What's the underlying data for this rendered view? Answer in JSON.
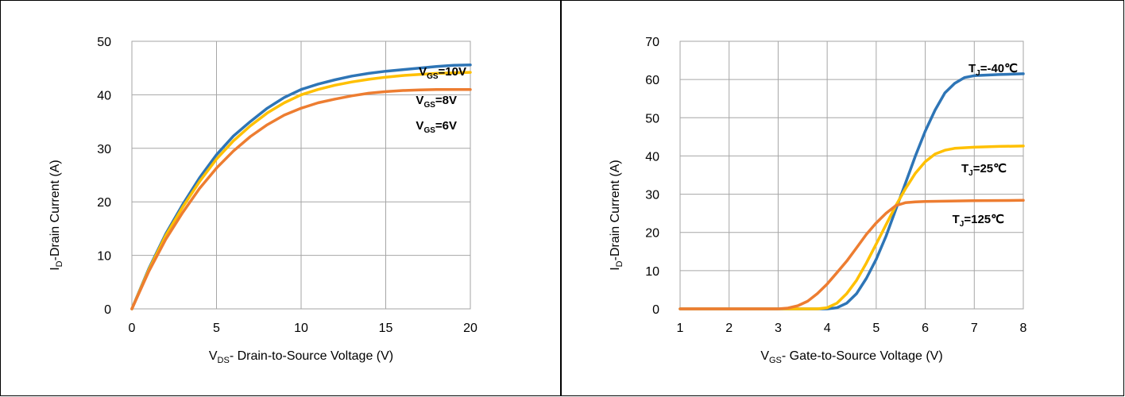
{
  "chart_data": [
    {
      "type": "line",
      "xlabel": {
        "main": "V",
        "sub": "DS",
        "rest": "- Drain-to-Source Voltage (V)"
      },
      "ylabel": {
        "main": "I",
        "sub": "D",
        "rest": "-Drain Current (A)"
      },
      "xlim": [
        0,
        20
      ],
      "ylim": [
        0,
        50
      ],
      "xticks": [
        0,
        5,
        10,
        15,
        20
      ],
      "yticks": [
        0,
        10,
        20,
        30,
        40,
        50
      ],
      "grid": true,
      "series": [
        {
          "label": {
            "main": "V",
            "sub": "GS",
            "rest": "=10V"
          },
          "color": "#2e75b6",
          "x": [
            0,
            1,
            2,
            3,
            4,
            5,
            6,
            7,
            8,
            9,
            10,
            11,
            12,
            13,
            14,
            15,
            16,
            17,
            18,
            19,
            20
          ],
          "y": [
            0,
            7.5,
            14,
            19.5,
            24.5,
            28.8,
            32.3,
            35.0,
            37.5,
            39.5,
            41.0,
            42.0,
            42.8,
            43.5,
            44.0,
            44.4,
            44.7,
            45.0,
            45.3,
            45.5,
            45.6
          ]
        },
        {
          "label": {
            "main": "V",
            "sub": "GS",
            "rest": "=8V"
          },
          "color": "#ffc000",
          "x": [
            0,
            1,
            2,
            3,
            4,
            5,
            6,
            7,
            8,
            9,
            10,
            11,
            12,
            13,
            14,
            15,
            16,
            17,
            18,
            19,
            20
          ],
          "y": [
            0,
            7.3,
            13.7,
            19.0,
            23.8,
            28.0,
            31.4,
            34.2,
            36.6,
            38.5,
            40.0,
            41.0,
            41.8,
            42.4,
            42.9,
            43.3,
            43.6,
            43.8,
            44.0,
            44.1,
            44.2
          ]
        },
        {
          "label": {
            "main": "V",
            "sub": "GS",
            "rest": "=6V"
          },
          "color": "#ed7d31",
          "x": [
            0,
            1,
            2,
            3,
            4,
            5,
            6,
            7,
            8,
            9,
            10,
            11,
            12,
            13,
            14,
            15,
            16,
            17,
            18,
            19,
            20
          ],
          "y": [
            0,
            7.0,
            13.0,
            18.0,
            22.5,
            26.3,
            29.5,
            32.2,
            34.4,
            36.2,
            37.5,
            38.5,
            39.2,
            39.8,
            40.3,
            40.6,
            40.8,
            40.9,
            41.0,
            41.0,
            41.0
          ]
        }
      ]
    },
    {
      "type": "line",
      "xlabel": {
        "main": "V",
        "sub": "GS",
        "rest": "- Gate-to-Source Voltage (V)"
      },
      "ylabel": {
        "main": "I",
        "sub": "D",
        "rest": "-Drain Current (A)"
      },
      "xlim": [
        1,
        8
      ],
      "ylim": [
        0,
        70
      ],
      "xticks": [
        1,
        2,
        3,
        4,
        5,
        6,
        7,
        8
      ],
      "yticks": [
        0,
        10,
        20,
        30,
        40,
        50,
        60,
        70
      ],
      "grid": true,
      "series": [
        {
          "label": {
            "main": "T",
            "sub": "J",
            "rest": "=-40℃"
          },
          "color": "#2e75b6",
          "x": [
            1,
            2,
            3,
            4.0,
            4.2,
            4.4,
            4.6,
            4.8,
            5.0,
            5.2,
            5.4,
            5.6,
            5.8,
            6.0,
            6.2,
            6.4,
            6.6,
            6.8,
            7.0,
            7.5,
            8.0
          ],
          "y": [
            0,
            0,
            0,
            0.0,
            0.3,
            1.5,
            4.0,
            8.0,
            13.0,
            19.0,
            26.0,
            33.0,
            40.0,
            46.5,
            52.0,
            56.5,
            59.0,
            60.5,
            61.0,
            61.3,
            61.5
          ]
        },
        {
          "label": {
            "main": "T",
            "sub": "J",
            "rest": "=25℃"
          },
          "color": "#ffc000",
          "x": [
            1,
            2,
            3,
            3.8,
            4.0,
            4.2,
            4.4,
            4.6,
            4.8,
            5.0,
            5.2,
            5.4,
            5.6,
            5.8,
            6.0,
            6.2,
            6.4,
            6.6,
            7.0,
            7.5,
            8.0
          ],
          "y": [
            0,
            0,
            0,
            0.0,
            0.3,
            1.5,
            4.0,
            7.5,
            12.0,
            17.0,
            22.0,
            27.0,
            31.5,
            35.5,
            38.5,
            40.5,
            41.5,
            42.0,
            42.3,
            42.5,
            42.6
          ]
        },
        {
          "label": {
            "main": "T",
            "sub": "J",
            "rest": "=125℃"
          },
          "color": "#ed7d31",
          "x": [
            1,
            2,
            3,
            3.2,
            3.4,
            3.6,
            3.8,
            4.0,
            4.2,
            4.4,
            4.6,
            4.8,
            5.0,
            5.2,
            5.4,
            5.6,
            5.8,
            6.0,
            6.5,
            7.0,
            8.0
          ],
          "y": [
            0,
            0,
            0,
            0.2,
            0.8,
            2.0,
            4.0,
            6.5,
            9.5,
            12.5,
            16.0,
            19.5,
            22.5,
            25.0,
            27.0,
            27.8,
            28.0,
            28.1,
            28.2,
            28.3,
            28.4
          ]
        }
      ]
    }
  ]
}
